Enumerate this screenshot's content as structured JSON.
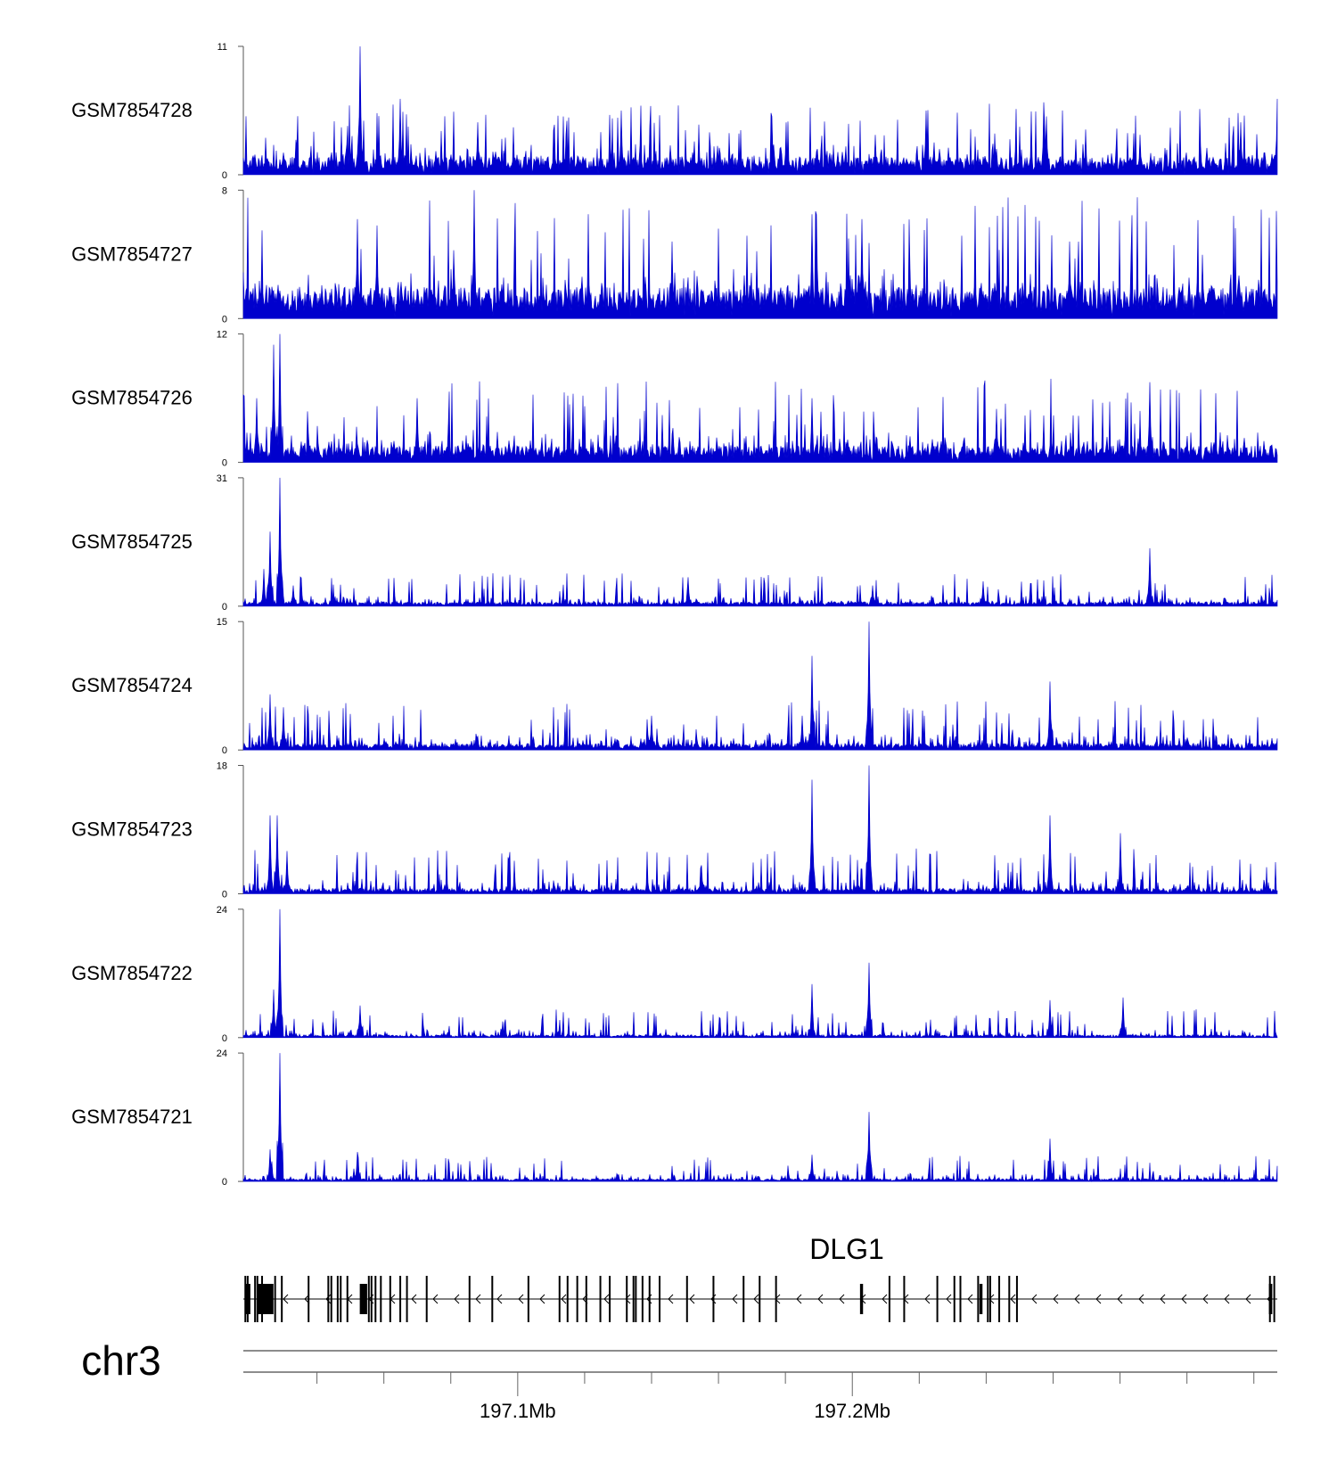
{
  "chart_data": {
    "type": "area",
    "title": "",
    "genome_axis": {
      "chromosome": "chr3",
      "xlim_mb": [
        197.018,
        197.327
      ],
      "tick_labels": [
        "197.1Mb",
        "197.2Mb"
      ],
      "label_ticks_mb": [
        197.1,
        197.2
      ],
      "minor_ticks_mb": [
        197.04,
        197.06,
        197.08,
        197.12,
        197.14,
        197.16,
        197.18,
        197.22,
        197.24,
        197.26,
        197.28,
        197.3,
        197.32
      ]
    },
    "tracks": [
      {
        "name": "GSM7854728",
        "ymax": 11,
        "ymin": 0,
        "baseline": 1.2,
        "noise": 1.3,
        "seed": 11,
        "peaks": [
          [
            197.053,
            11
          ],
          [
            197.065,
            6.5
          ],
          [
            197.088,
            4.5
          ],
          [
            197.131,
            5.5
          ],
          [
            197.176,
            5
          ],
          [
            197.222,
            5.5
          ],
          [
            197.258,
            5
          ],
          [
            197.316,
            4.5
          ],
          [
            197.327,
            6.5
          ]
        ]
      },
      {
        "name": "GSM7854727",
        "ymax": 8,
        "ymin": 0,
        "baseline": 1.5,
        "noise": 1.5,
        "seed": 23,
        "peaks": [
          [
            197.052,
            6.2
          ],
          [
            197.058,
            5.8
          ],
          [
            197.087,
            8
          ],
          [
            197.146,
            4.8
          ],
          [
            197.188,
            6.5
          ],
          [
            197.203,
            6.2
          ],
          [
            197.121,
            4.6
          ],
          [
            197.265,
            4.8
          ]
        ]
      },
      {
        "name": "GSM7854726",
        "ymax": 12,
        "ymin": 0,
        "baseline": 1.2,
        "noise": 1.6,
        "seed": 37,
        "peaks": [
          [
            197.029,
            12
          ],
          [
            197.027,
            11
          ],
          [
            197.022,
            6
          ],
          [
            197.07,
            6
          ],
          [
            197.188,
            6
          ],
          [
            197.289,
            7.5
          ],
          [
            197.243,
            5
          ]
        ]
      },
      {
        "name": "GSM7854725",
        "ymax": 31,
        "ymin": 0,
        "baseline": 0.8,
        "noise": 1.8,
        "seed": 41,
        "peaks": [
          [
            197.029,
            31
          ],
          [
            197.026,
            18
          ],
          [
            197.024,
            9
          ],
          [
            197.033,
            5
          ],
          [
            197.151,
            7
          ],
          [
            197.206,
            5
          ],
          [
            197.289,
            14
          ],
          [
            197.239,
            6
          ]
        ]
      },
      {
        "name": "GSM7854724",
        "ymax": 15,
        "ymin": 0,
        "baseline": 0.6,
        "noise": 1.3,
        "seed": 53,
        "peaks": [
          [
            197.026,
            6.5
          ],
          [
            197.03,
            5
          ],
          [
            197.188,
            11
          ],
          [
            197.205,
            15
          ],
          [
            197.259,
            8
          ],
          [
            197.185,
            4
          ],
          [
            197.14,
            4
          ]
        ]
      },
      {
        "name": "GSM7854723",
        "ymax": 18,
        "ymin": 0,
        "baseline": 0.6,
        "noise": 1.4,
        "seed": 67,
        "peaks": [
          [
            197.026,
            11
          ],
          [
            197.028,
            11
          ],
          [
            197.031,
            6
          ],
          [
            197.188,
            16
          ],
          [
            197.205,
            18
          ],
          [
            197.259,
            11
          ],
          [
            197.28,
            8.5
          ],
          [
            197.155,
            4
          ]
        ]
      },
      {
        "name": "GSM7854722",
        "ymax": 24,
        "ymin": 0,
        "baseline": 0.4,
        "noise": 1.2,
        "seed": 79,
        "peaks": [
          [
            197.029,
            24
          ],
          [
            197.027,
            9
          ],
          [
            197.053,
            6
          ],
          [
            197.188,
            10
          ],
          [
            197.205,
            14
          ],
          [
            197.259,
            7
          ],
          [
            197.281,
            7.5
          ]
        ]
      },
      {
        "name": "GSM7854721",
        "ymax": 24,
        "ymin": 0,
        "baseline": 0.4,
        "noise": 1.1,
        "seed": 97,
        "peaks": [
          [
            197.029,
            24
          ],
          [
            197.026,
            6
          ],
          [
            197.052,
            5.5
          ],
          [
            197.205,
            13
          ],
          [
            197.259,
            8
          ],
          [
            197.188,
            5
          ]
        ]
      }
    ],
    "gene": {
      "name": "DLG1",
      "strand": "-",
      "start_mb": 197.018,
      "end_mb": 197.327,
      "exons_mb": [
        197.0186,
        197.0193,
        197.0215,
        197.0222,
        197.0236,
        197.0275,
        197.0295,
        197.0375,
        197.0434,
        197.0443,
        197.0462,
        197.0471,
        197.0491,
        197.0555,
        197.0563,
        197.0575,
        197.0591,
        197.0619,
        197.0649,
        197.0669,
        197.0728,
        197.0856,
        197.0924,
        197.1032,
        197.1125,
        197.1149,
        197.1178,
        197.1205,
        197.1247,
        197.1275,
        197.1326,
        197.1346,
        197.1353,
        197.1373,
        197.1394,
        197.1424,
        197.1506,
        197.1585,
        197.1675,
        197.1723,
        197.1772,
        197.2111,
        197.2155,
        197.2254,
        197.2305,
        197.2323,
        197.2376,
        197.2405,
        197.2412,
        197.2439,
        197.2469,
        197.2492,
        197.3248,
        197.3261
      ],
      "block_exons_mb": [
        [
          197.0188,
          197.0201
        ],
        [
          197.022,
          197.027
        ],
        [
          197.0528,
          197.055
        ],
        [
          197.2023,
          197.2032
        ],
        [
          197.238,
          197.2389
        ],
        [
          197.3245,
          197.3255
        ]
      ]
    },
    "colors": {
      "signal": "#0000cd",
      "axis": "#555555",
      "gene": "#000000",
      "text": "#000000"
    }
  }
}
